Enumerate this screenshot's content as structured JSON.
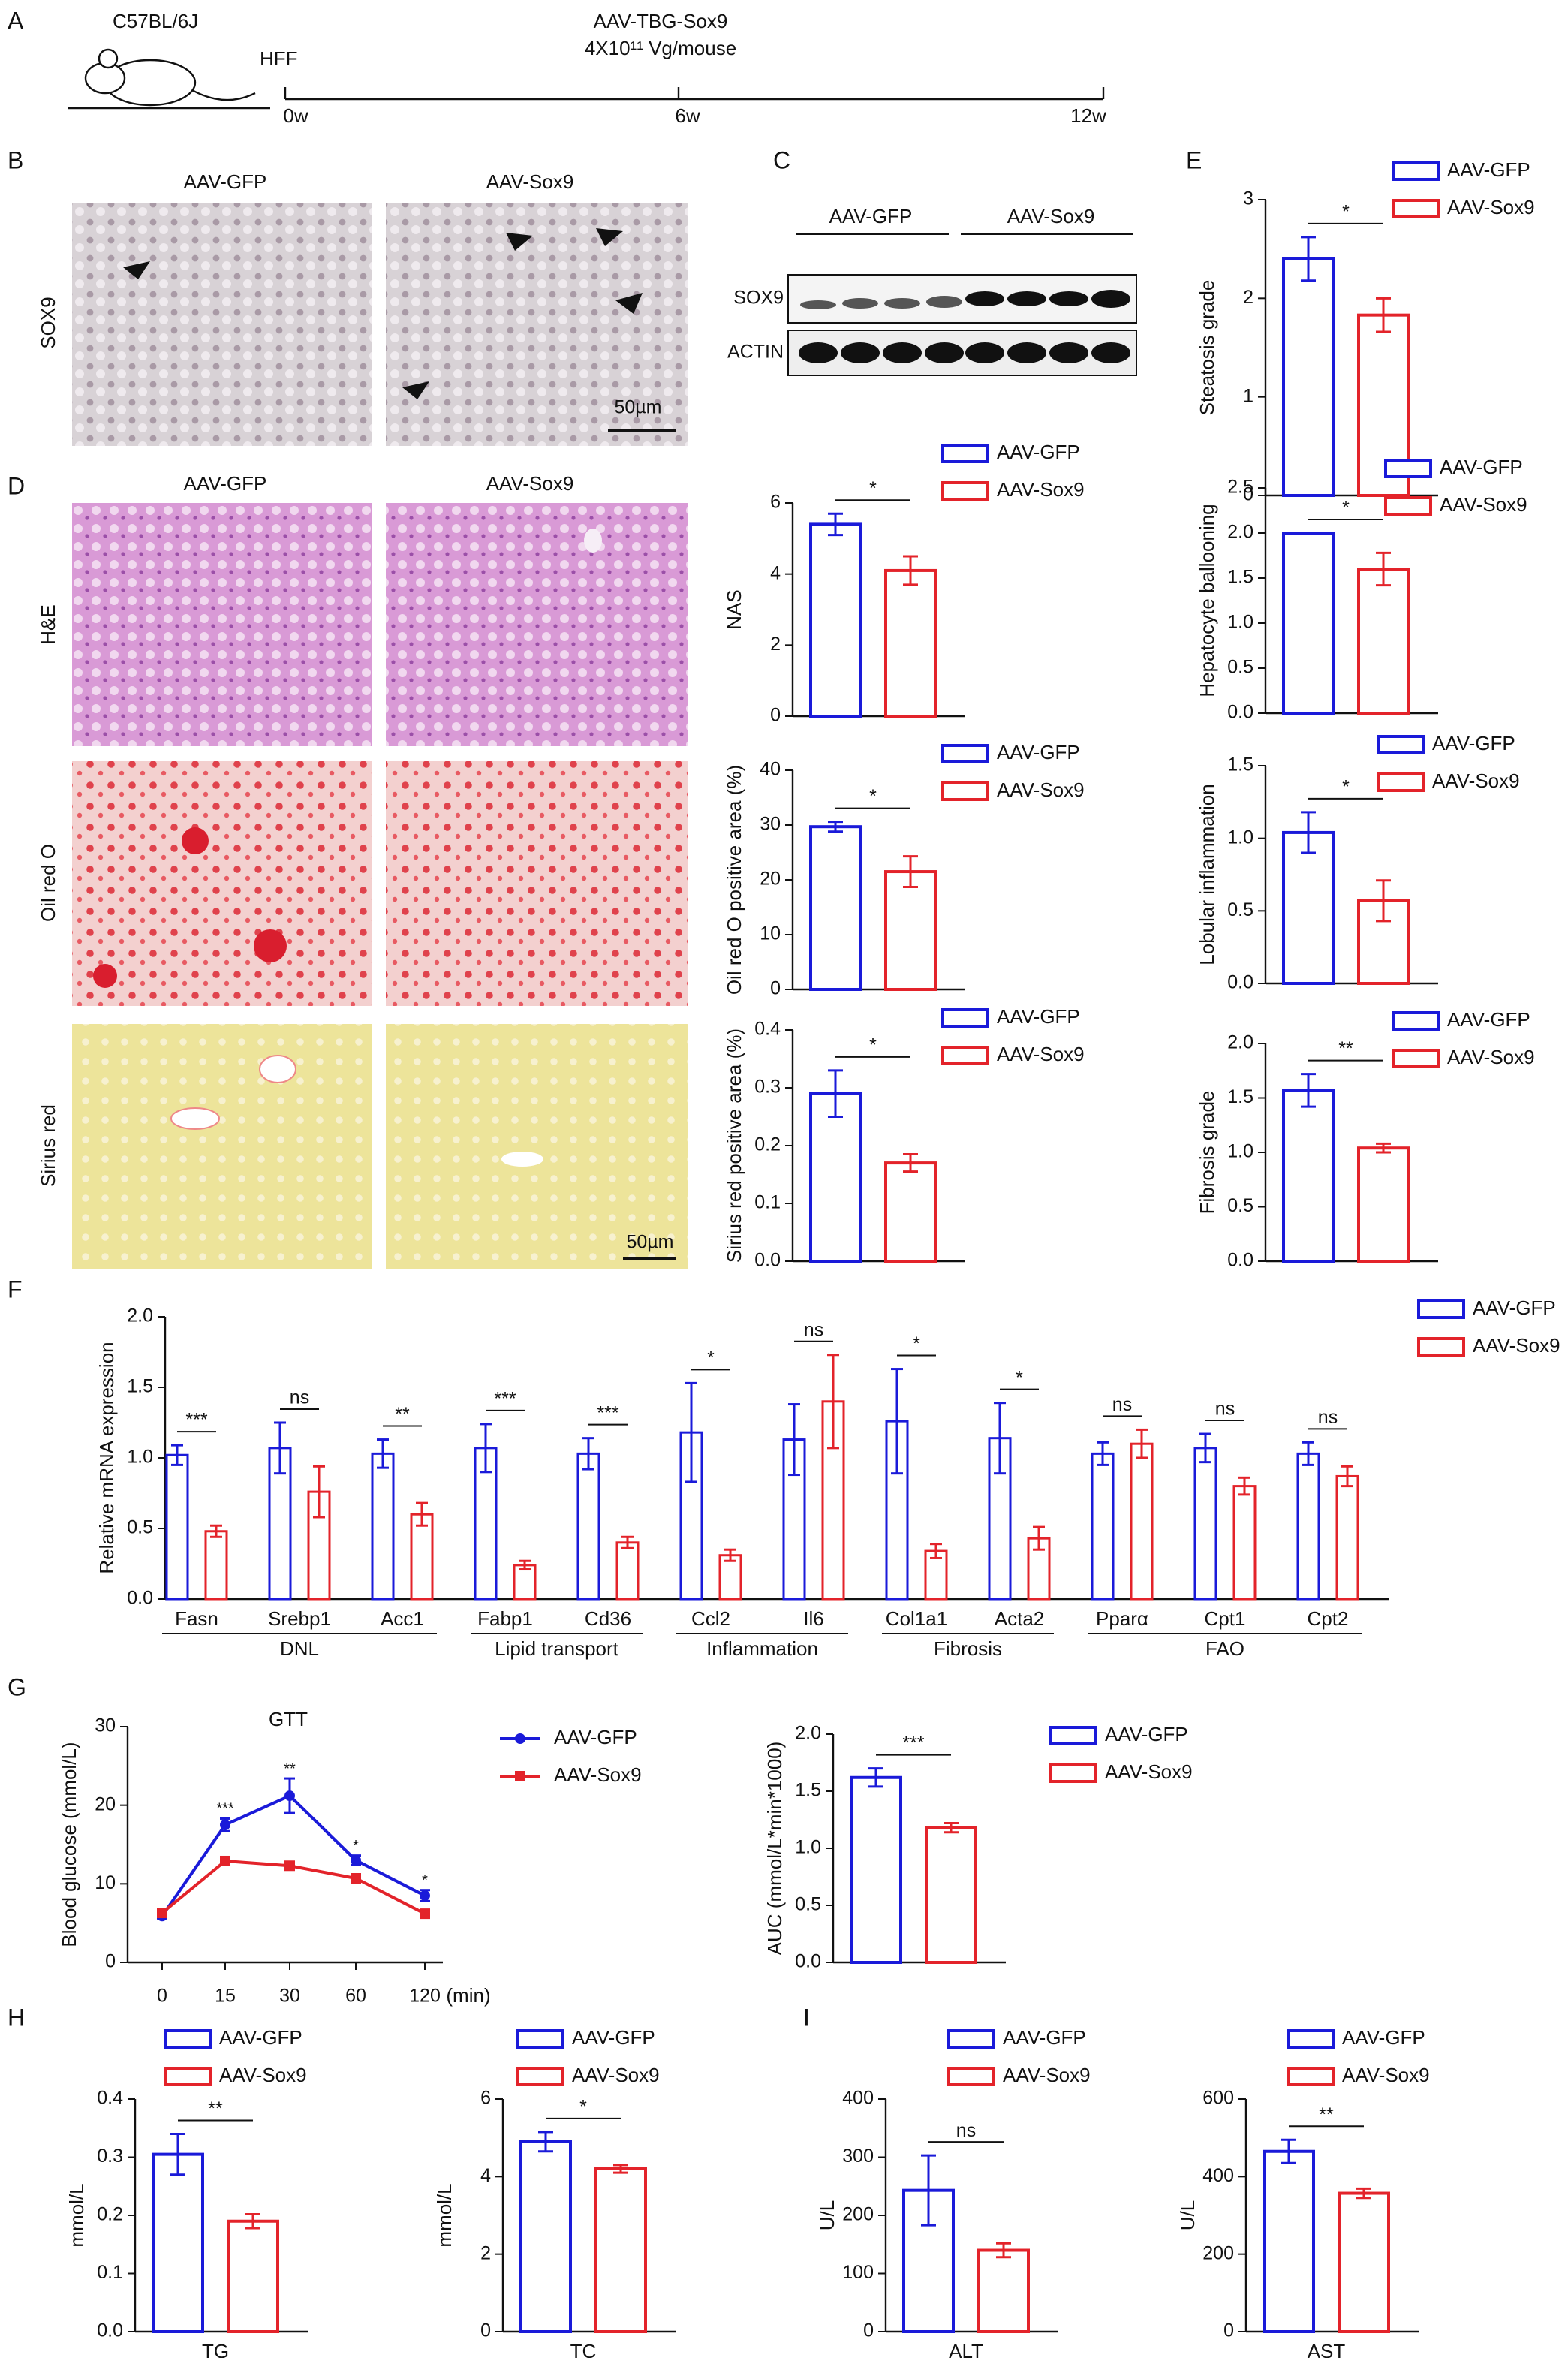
{
  "panels": {
    "letters": [
      "A",
      "B",
      "C",
      "D",
      "E",
      "F",
      "G",
      "H",
      "I"
    ]
  },
  "timeline": {
    "strain": "C57BL/6J",
    "diet": "HFF",
    "treatment": "AAV-TBG-Sox9",
    "dose": "4X10¹¹ Vg/mouse",
    "times": [
      "0w",
      "6w",
      "12w"
    ]
  },
  "histology": {
    "columns": [
      "AAV-GFP",
      "AAV-Sox9"
    ],
    "stain": "SOX9",
    "rows": [
      "H&E",
      "Oil red O",
      "Sirius red"
    ],
    "scale_bar": "50µm"
  },
  "western_blot": {
    "columns": [
      "AAV-GFP",
      "AAV-Sox9"
    ],
    "rows": [
      "SOX9",
      "ACTIN"
    ]
  },
  "chart_data": [
    {
      "type": "bar",
      "ylabel": "NAS",
      "ylim": [
        0,
        6
      ],
      "yticks": [
        0,
        2,
        4,
        6
      ],
      "significance": [
        "*"
      ],
      "series": [
        {
          "name": "AAV-GFP",
          "color": "#1a1ad9",
          "values": [
            5.4
          ],
          "errors": [
            0.3
          ]
        },
        {
          "name": "AAV-Sox9",
          "color": "#e3232a",
          "values": [
            4.1
          ],
          "errors": [
            0.4
          ]
        }
      ]
    },
    {
      "type": "bar",
      "ylabel": "Oil red O positive area (%)",
      "ylim": [
        0,
        40
      ],
      "yticks": [
        0,
        10,
        20,
        30,
        40
      ],
      "significance": [
        "*"
      ],
      "series": [
        {
          "name": "AAV-GFP",
          "color": "#1a1ad9",
          "values": [
            29.7
          ],
          "errors": [
            0.9
          ]
        },
        {
          "name": "AAV-Sox9",
          "color": "#e3232a",
          "values": [
            21.5
          ],
          "errors": [
            2.8
          ]
        }
      ]
    },
    {
      "type": "bar",
      "ylabel": "Sirius red positive area (%)",
      "ylim": [
        0,
        0.4
      ],
      "yticks": [
        {
          "value": 0,
          "label": "0.0"
        },
        0.1,
        0.2,
        0.3,
        0.4
      ],
      "significance": [
        "*"
      ],
      "series": [
        {
          "name": "AAV-GFP",
          "color": "#1a1ad9",
          "values": [
            0.29
          ],
          "errors": [
            0.04
          ]
        },
        {
          "name": "AAV-Sox9",
          "color": "#e3232a",
          "values": [
            0.17
          ],
          "errors": [
            0.015
          ]
        }
      ]
    },
    {
      "type": "bar",
      "ylabel": "Steatosis grade",
      "ylim": [
        0,
        3
      ],
      "yticks": [
        0,
        1,
        2,
        3
      ],
      "significance": [
        "*"
      ],
      "series": [
        {
          "name": "AAV-GFP",
          "color": "#1a1ad9",
          "values": [
            2.4
          ],
          "errors": [
            0.22
          ]
        },
        {
          "name": "AAV-Sox9",
          "color": "#e3232a",
          "values": [
            1.83
          ],
          "errors": [
            0.17
          ]
        }
      ]
    },
    {
      "type": "bar",
      "ylabel": "Hepatocyte ballooning",
      "ylim": [
        0,
        2.5
      ],
      "yticks": [
        {
          "value": 0,
          "label": "0.0"
        },
        0.5,
        {
          "value": 1,
          "label": "1.0"
        },
        1.5,
        {
          "value": 2,
          "label": "2.0"
        },
        2.5
      ],
      "significance": [
        "*"
      ],
      "series": [
        {
          "name": "AAV-GFP",
          "color": "#1a1ad9",
          "values": [
            2.0
          ],
          "errors": [
            0
          ]
        },
        {
          "name": "AAV-Sox9",
          "color": "#e3232a",
          "values": [
            1.6
          ],
          "errors": [
            0.18
          ]
        }
      ]
    },
    {
      "type": "bar",
      "ylabel": "Lobular inflammation",
      "ylim": [
        0,
        1.5
      ],
      "yticks": [
        {
          "value": 0,
          "label": "0.0"
        },
        0.5,
        {
          "value": 1,
          "label": "1.0"
        },
        1.5
      ],
      "significance": [
        "*"
      ],
      "series": [
        {
          "name": "AAV-GFP",
          "color": "#1a1ad9",
          "values": [
            1.04
          ],
          "errors": [
            0.14
          ]
        },
        {
          "name": "AAV-Sox9",
          "color": "#e3232a",
          "values": [
            0.57
          ],
          "errors": [
            0.14
          ]
        }
      ]
    },
    {
      "type": "bar",
      "ylabel": "Fibrosis grade",
      "ylim": [
        0,
        2
      ],
      "yticks": [
        {
          "value": 0,
          "label": "0.0"
        },
        0.5,
        {
          "value": 1,
          "label": "1.0"
        },
        1.5,
        {
          "value": 2,
          "label": "2.0"
        }
      ],
      "significance": [
        "**"
      ],
      "series": [
        {
          "name": "AAV-GFP",
          "color": "#1a1ad9",
          "values": [
            1.57
          ],
          "errors": [
            0.15
          ]
        },
        {
          "name": "AAV-Sox9",
          "color": "#e3232a",
          "values": [
            1.04
          ],
          "errors": [
            0.04
          ]
        }
      ]
    },
    {
      "type": "bar",
      "ylabel": "Relative mRNA expression",
      "ylim": [
        0,
        2
      ],
      "yticks": [
        {
          "value": 0,
          "label": "0.0"
        },
        0.5,
        {
          "value": 1,
          "label": "1.0"
        },
        1.5,
        {
          "value": 2,
          "label": "2.0"
        }
      ],
      "categories": [
        "Fasn",
        "Srebp1",
        "Acc1",
        "Fabp1",
        "Cd36",
        "Ccl2",
        "Il6",
        "Col1a1",
        "Acta2",
        "Pparα",
        "Cpt1",
        "Cpt2"
      ],
      "category_groups": [
        "DNL",
        "DNL",
        "DNL",
        "Lipid transport",
        "Lipid transport",
        "Inflammation",
        "Inflammation",
        "Fibrosis",
        "Fibrosis",
        "FAO",
        "FAO",
        "FAO"
      ],
      "significance": [
        "***",
        "ns",
        "**",
        "***",
        "***",
        "*",
        "ns",
        "*",
        "*",
        "ns",
        "ns",
        "ns"
      ],
      "series": [
        {
          "name": "AAV-GFP",
          "color": "#1a1ad9",
          "values": [
            1.02,
            1.07,
            1.03,
            1.07,
            1.03,
            1.18,
            1.13,
            1.26,
            1.14,
            1.03,
            1.07,
            1.03
          ],
          "errors": [
            0.07,
            0.18,
            0.1,
            0.17,
            0.11,
            0.35,
            0.25,
            0.37,
            0.25,
            0.08,
            0.1,
            0.08
          ]
        },
        {
          "name": "AAV-Sox9",
          "color": "#e3232a",
          "values": [
            0.48,
            0.76,
            0.6,
            0.24,
            0.4,
            0.31,
            1.4,
            0.34,
            0.43,
            1.1,
            0.8,
            0.87
          ],
          "errors": [
            0.04,
            0.18,
            0.08,
            0.03,
            0.04,
            0.04,
            0.33,
            0.05,
            0.08,
            0.1,
            0.06,
            0.07
          ]
        }
      ]
    },
    {
      "type": "line",
      "title": "GTT",
      "ylabel": "Blood glucose (mmol/L)",
      "xlabel": "(min)",
      "ylim": [
        0,
        30
      ],
      "yticks": [
        0,
        10,
        20,
        30
      ],
      "categories": [
        "0",
        "15",
        "30",
        "60",
        "120"
      ],
      "significance": [
        null,
        "***",
        "**",
        "*",
        "*"
      ],
      "series": [
        {
          "name": "AAV-GFP",
          "color": "#1a1ad9",
          "marker": "circle",
          "values": [
            5.9,
            17.5,
            21.2,
            13,
            8.5
          ],
          "errors": [
            0.3,
            0.8,
            2.2,
            0.6,
            0.7
          ]
        },
        {
          "name": "AAV-Sox9",
          "color": "#e3232a",
          "marker": "square",
          "values": [
            6.3,
            12.9,
            12.3,
            10.7,
            6.2
          ],
          "errors": [
            0.3,
            0.4,
            0.4,
            0.5,
            0.4
          ]
        }
      ]
    },
    {
      "type": "bar",
      "ylabel": "AUC (mmol/L*min*1000)",
      "ylim": [
        0,
        2
      ],
      "yticks": [
        {
          "value": 0,
          "label": "0.0"
        },
        0.5,
        {
          "value": 1,
          "label": "1.0"
        },
        1.5,
        {
          "value": 2,
          "label": "2.0"
        }
      ],
      "significance": [
        "***"
      ],
      "series": [
        {
          "name": "AAV-GFP",
          "color": "#1a1ad9",
          "values": [
            1.62
          ],
          "errors": [
            0.08
          ]
        },
        {
          "name": "AAV-Sox9",
          "color": "#e3232a",
          "values": [
            1.18
          ],
          "errors": [
            0.04
          ]
        }
      ]
    },
    {
      "type": "bar",
      "ylabel": "mmol/L",
      "categories": [
        "TG"
      ],
      "ylim": [
        0,
        0.4
      ],
      "yticks": [
        {
          "value": 0,
          "label": "0.0"
        },
        0.1,
        0.2,
        0.3,
        0.4
      ],
      "significance": [
        "**"
      ],
      "series": [
        {
          "name": "AAV-GFP",
          "color": "#1a1ad9",
          "values": [
            0.305
          ],
          "errors": [
            0.035
          ]
        },
        {
          "name": "AAV-Sox9",
          "color": "#e3232a",
          "values": [
            0.19
          ],
          "errors": [
            0.012
          ]
        }
      ]
    },
    {
      "type": "bar",
      "ylabel": "mmol/L",
      "categories": [
        "TC"
      ],
      "ylim": [
        0,
        6
      ],
      "yticks": [
        0,
        2,
        4,
        6
      ],
      "significance": [
        "*"
      ],
      "series": [
        {
          "name": "AAV-GFP",
          "color": "#1a1ad9",
          "values": [
            4.9
          ],
          "errors": [
            0.25
          ]
        },
        {
          "name": "AAV-Sox9",
          "color": "#e3232a",
          "values": [
            4.2
          ],
          "errors": [
            0.1
          ]
        }
      ]
    },
    {
      "type": "bar",
      "ylabel": "U/L",
      "categories": [
        "ALT"
      ],
      "ylim": [
        0,
        400
      ],
      "yticks": [
        0,
        100,
        200,
        300,
        400
      ],
      "significance": [
        "ns"
      ],
      "series": [
        {
          "name": "AAV-GFP",
          "color": "#1a1ad9",
          "values": [
            243
          ],
          "errors": [
            60
          ]
        },
        {
          "name": "AAV-Sox9",
          "color": "#e3232a",
          "values": [
            140
          ],
          "errors": [
            12
          ]
        }
      ]
    },
    {
      "type": "bar",
      "ylabel": "U/L",
      "categories": [
        "AST"
      ],
      "ylim": [
        0,
        600
      ],
      "yticks": [
        0,
        200,
        400,
        600
      ],
      "significance": [
        "**"
      ],
      "series": [
        {
          "name": "AAV-GFP",
          "color": "#1a1ad9",
          "values": [
            465
          ],
          "errors": [
            30
          ]
        },
        {
          "name": "AAV-Sox9",
          "color": "#e3232a",
          "values": [
            357
          ],
          "errors": [
            12
          ]
        }
      ]
    }
  ]
}
